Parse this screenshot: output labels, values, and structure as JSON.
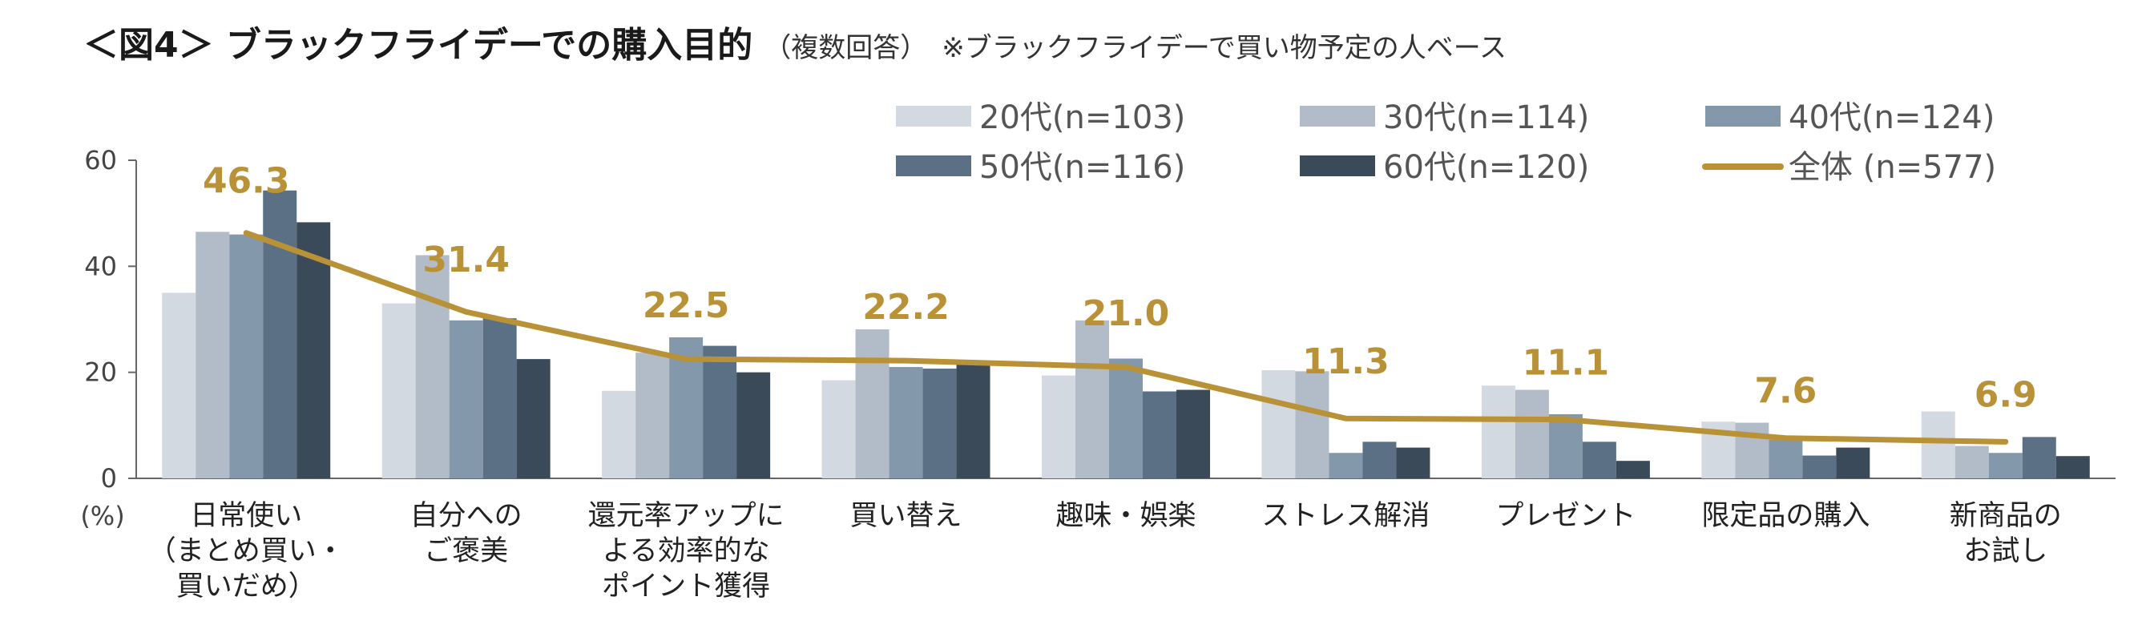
{
  "title": {
    "main": "＜図4＞ ブラックフライデーでの購入目的",
    "sub": "（複数回答）",
    "note": "※ブラックフライデーで買い物予定の人ベース"
  },
  "chart_data": {
    "type": "bar",
    "unit_label": "(%)",
    "ylim": [
      0,
      60
    ],
    "yticks": [
      0,
      20,
      40,
      60
    ],
    "categories": [
      [
        "日常使い",
        "（まとめ買い・",
        "買いだめ）"
      ],
      [
        "自分への",
        "ご褒美"
      ],
      [
        "還元率アップに",
        "よる効率的な",
        "ポイント獲得"
      ],
      [
        "買い替え"
      ],
      [
        "趣味・娯楽"
      ],
      [
        "ストレス解消"
      ],
      [
        "プレゼント"
      ],
      [
        "限定品の購入"
      ],
      [
        "新商品の",
        "お試し"
      ]
    ],
    "series": [
      {
        "name": "20代(n=103)",
        "color": "#D3D9E0",
        "values": [
          35.0,
          33.0,
          16.5,
          18.5,
          19.4,
          20.4,
          17.5,
          10.7,
          12.6
        ]
      },
      {
        "name": "30代(n=114)",
        "color": "#B1BCC8",
        "values": [
          46.5,
          42.1,
          23.7,
          28.1,
          29.8,
          20.2,
          16.7,
          10.5,
          6.1
        ]
      },
      {
        "name": "40代(n=124)",
        "color": "#8398AB",
        "values": [
          46.0,
          29.8,
          26.6,
          21.0,
          22.6,
          4.8,
          12.1,
          7.3,
          4.8
        ]
      },
      {
        "name": "50代(n=116)",
        "color": "#5B7085",
        "values": [
          54.3,
          30.2,
          25.0,
          20.7,
          16.4,
          6.9,
          6.9,
          4.3,
          7.8
        ]
      },
      {
        "name": "60代(n=120)",
        "color": "#3B4A59",
        "values": [
          48.3,
          22.5,
          20.0,
          21.7,
          16.7,
          5.8,
          3.3,
          5.8,
          4.2
        ]
      }
    ],
    "line": {
      "name": "全体 (n=577)",
      "color": "#B99137",
      "values": [
        46.3,
        31.4,
        22.5,
        22.2,
        21.0,
        11.3,
        11.1,
        7.6,
        6.9
      ]
    },
    "value_labels": [
      "46.3",
      "31.4",
      "22.5",
      "22.2",
      "21.0",
      "11.3",
      "11.1",
      "7.6",
      "6.9"
    ],
    "grid": false,
    "legend_position": "top-right"
  }
}
